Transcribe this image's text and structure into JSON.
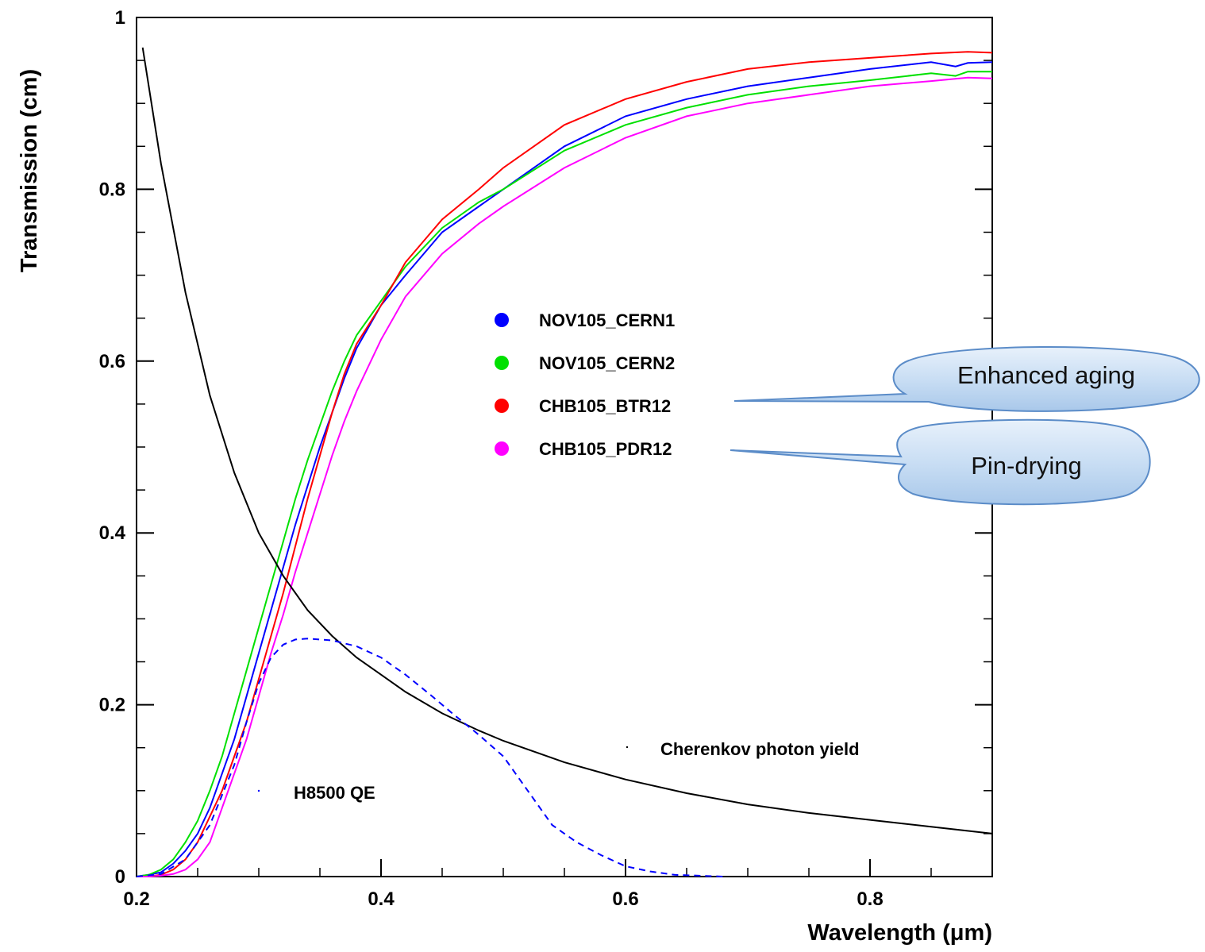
{
  "chart_data": {
    "type": "line",
    "xlabel": "Wavelength (μm)",
    "ylabel": "Transmission (cm)",
    "xlim": [
      0.2,
      0.9
    ],
    "ylim": [
      0,
      1
    ],
    "x_ticks": [
      0.2,
      0.4,
      0.6,
      0.8
    ],
    "x_tick_labels": [
      "0.2",
      "0.4",
      "0.6",
      "0.8"
    ],
    "y_ticks": [
      0,
      0.2,
      0.4,
      0.6,
      0.8,
      1
    ],
    "y_tick_labels": [
      "0",
      "0.2",
      "0.4",
      "0.6",
      "0.8",
      "1"
    ],
    "grid": false,
    "legend_position": "center",
    "series": [
      {
        "name": "NOV105_CERN1",
        "color": "#0000ff",
        "x": [
          0.2,
          0.21,
          0.22,
          0.23,
          0.24,
          0.25,
          0.26,
          0.27,
          0.28,
          0.29,
          0.3,
          0.31,
          0.32,
          0.33,
          0.34,
          0.35,
          0.36,
          0.37,
          0.38,
          0.4,
          0.42,
          0.45,
          0.48,
          0.5,
          0.55,
          0.6,
          0.65,
          0.7,
          0.75,
          0.8,
          0.85,
          0.87,
          0.88,
          0.9
        ],
        "y": [
          0.0,
          0.002,
          0.005,
          0.015,
          0.03,
          0.05,
          0.08,
          0.12,
          0.16,
          0.21,
          0.26,
          0.31,
          0.36,
          0.41,
          0.455,
          0.5,
          0.54,
          0.58,
          0.615,
          0.665,
          0.7,
          0.75,
          0.78,
          0.8,
          0.85,
          0.885,
          0.905,
          0.92,
          0.93,
          0.94,
          0.948,
          0.943,
          0.947,
          0.948
        ]
      },
      {
        "name": "NOV105_CERN2",
        "color": "#00e000",
        "x": [
          0.2,
          0.21,
          0.22,
          0.23,
          0.24,
          0.25,
          0.26,
          0.27,
          0.28,
          0.29,
          0.3,
          0.31,
          0.32,
          0.33,
          0.34,
          0.35,
          0.36,
          0.37,
          0.38,
          0.4,
          0.42,
          0.45,
          0.48,
          0.5,
          0.55,
          0.6,
          0.65,
          0.7,
          0.75,
          0.8,
          0.85,
          0.87,
          0.88,
          0.9
        ],
        "y": [
          0.0,
          0.002,
          0.008,
          0.02,
          0.04,
          0.065,
          0.1,
          0.14,
          0.19,
          0.24,
          0.29,
          0.34,
          0.39,
          0.44,
          0.485,
          0.525,
          0.565,
          0.6,
          0.63,
          0.67,
          0.71,
          0.755,
          0.785,
          0.8,
          0.845,
          0.875,
          0.895,
          0.91,
          0.92,
          0.927,
          0.935,
          0.932,
          0.937,
          0.937
        ]
      },
      {
        "name": "CHB105_BTR12",
        "color": "#ff0000",
        "x": [
          0.2,
          0.21,
          0.22,
          0.23,
          0.24,
          0.25,
          0.26,
          0.27,
          0.28,
          0.29,
          0.3,
          0.31,
          0.32,
          0.33,
          0.34,
          0.35,
          0.36,
          0.37,
          0.38,
          0.4,
          0.42,
          0.45,
          0.48,
          0.5,
          0.55,
          0.6,
          0.65,
          0.7,
          0.75,
          0.8,
          0.85,
          0.88,
          0.9
        ],
        "y": [
          0.0,
          0.0,
          0.002,
          0.008,
          0.02,
          0.04,
          0.07,
          0.1,
          0.14,
          0.18,
          0.23,
          0.28,
          0.33,
          0.385,
          0.44,
          0.49,
          0.54,
          0.585,
          0.62,
          0.665,
          0.715,
          0.765,
          0.8,
          0.825,
          0.875,
          0.905,
          0.925,
          0.94,
          0.948,
          0.953,
          0.958,
          0.96,
          0.959
        ]
      },
      {
        "name": "CHB105_PDR12",
        "color": "#ff00ff",
        "x": [
          0.2,
          0.21,
          0.22,
          0.23,
          0.24,
          0.25,
          0.26,
          0.27,
          0.28,
          0.29,
          0.3,
          0.31,
          0.32,
          0.33,
          0.34,
          0.35,
          0.36,
          0.37,
          0.38,
          0.4,
          0.42,
          0.45,
          0.48,
          0.5,
          0.55,
          0.6,
          0.65,
          0.7,
          0.75,
          0.8,
          0.85,
          0.88,
          0.9
        ],
        "y": [
          0.0,
          0.0,
          0.001,
          0.003,
          0.008,
          0.02,
          0.04,
          0.08,
          0.12,
          0.16,
          0.21,
          0.26,
          0.305,
          0.355,
          0.4,
          0.445,
          0.49,
          0.53,
          0.565,
          0.625,
          0.675,
          0.725,
          0.76,
          0.78,
          0.825,
          0.86,
          0.885,
          0.9,
          0.91,
          0.92,
          0.926,
          0.93,
          0.929
        ]
      }
    ],
    "annotation_curves": [
      {
        "label": "Cherenkov photon yield",
        "color": "#000000",
        "style": "solid",
        "x": [
          0.205,
          0.22,
          0.24,
          0.26,
          0.28,
          0.3,
          0.32,
          0.34,
          0.36,
          0.38,
          0.4,
          0.42,
          0.45,
          0.48,
          0.5,
          0.55,
          0.6,
          0.65,
          0.7,
          0.75,
          0.8,
          0.85,
          0.9
        ],
        "y": [
          0.965,
          0.83,
          0.68,
          0.56,
          0.47,
          0.4,
          0.35,
          0.31,
          0.28,
          0.255,
          0.235,
          0.215,
          0.19,
          0.17,
          0.158,
          0.133,
          0.113,
          0.097,
          0.084,
          0.074,
          0.066,
          0.058,
          0.05
        ]
      },
      {
        "label": "H8500 QE",
        "color": "#0000ff",
        "style": "dashed",
        "x": [
          0.2,
          0.22,
          0.24,
          0.26,
          0.28,
          0.29,
          0.3,
          0.31,
          0.32,
          0.33,
          0.34,
          0.36,
          0.38,
          0.4,
          0.42,
          0.44,
          0.46,
          0.48,
          0.5,
          0.52,
          0.54,
          0.56,
          0.58,
          0.6,
          0.62,
          0.64,
          0.66,
          0.68
        ],
        "y": [
          0.0,
          0.003,
          0.02,
          0.06,
          0.13,
          0.18,
          0.225,
          0.255,
          0.27,
          0.276,
          0.277,
          0.275,
          0.268,
          0.255,
          0.235,
          0.212,
          0.188,
          0.165,
          0.14,
          0.1,
          0.06,
          0.04,
          0.025,
          0.012,
          0.006,
          0.002,
          0.001,
          0.0
        ]
      }
    ],
    "annotations": [
      {
        "text": "Cherenkov photon yield",
        "x": 0.63,
        "y": 0.14
      },
      {
        "text": "H8500 QE",
        "x": 0.325,
        "y": 0.1
      }
    ],
    "callouts": [
      {
        "text": "Enhanced aging",
        "points_to": "CHB105_BTR12"
      },
      {
        "text": "Pin-drying",
        "points_to": "CHB105_PDR12"
      }
    ]
  }
}
